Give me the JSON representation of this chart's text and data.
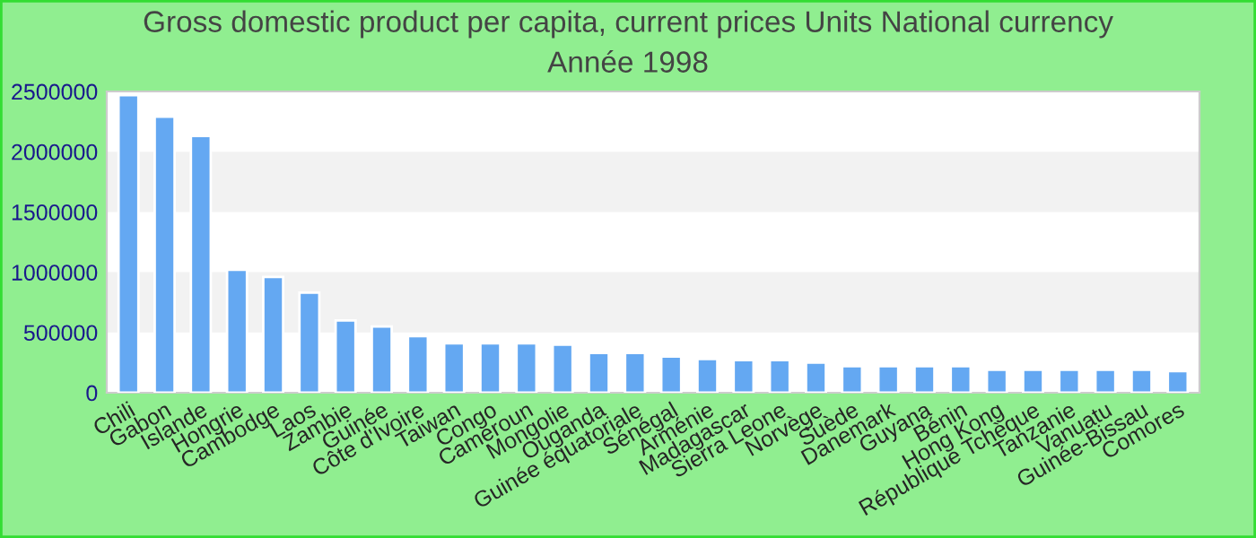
{
  "chart_data": {
    "type": "bar",
    "title": "Gross domestic product per capita, current prices Units National currency",
    "subtitle": "Année 1998",
    "categories": [
      "Chili",
      "Gabon",
      "Islande",
      "Hongrie",
      "Cambodge",
      "Laos",
      "Zambie",
      "Guinée",
      "Côte d'Ivoire",
      "Taiwan",
      "Congo",
      "Cameroun",
      "Mongolie",
      "Ouganda",
      "Guinée équatoriale",
      "Sénégal",
      "Arménie",
      "Madagascar",
      "Sierra Leone",
      "Norvège",
      "Suède",
      "Danemark",
      "Guyana",
      "Bénin",
      "Hong Kong",
      "République Tchèque",
      "Tanzanie",
      "Vanuatu",
      "Guinée-Bissau",
      "Comores"
    ],
    "values": [
      2470000,
      2290000,
      2130000,
      1020000,
      960000,
      830000,
      600000,
      550000,
      470000,
      410000,
      410000,
      410000,
      400000,
      330000,
      330000,
      300000,
      280000,
      270000,
      270000,
      250000,
      220000,
      220000,
      220000,
      220000,
      190000,
      190000,
      190000,
      190000,
      190000,
      180000
    ],
    "color": "#64a8f2",
    "ylim": [
      0,
      2500000
    ],
    "yticks": [
      0,
      500000,
      1000000,
      1500000,
      2000000,
      2500000
    ],
    "bands": [
      {
        "axis": "y",
        "from": 500000,
        "to": 1000000,
        "color": "#f2f2f2"
      },
      {
        "axis": "y",
        "from": 1500000,
        "to": 2000000,
        "color": "#f2f2f2"
      }
    ],
    "grid": false,
    "legend": false
  }
}
